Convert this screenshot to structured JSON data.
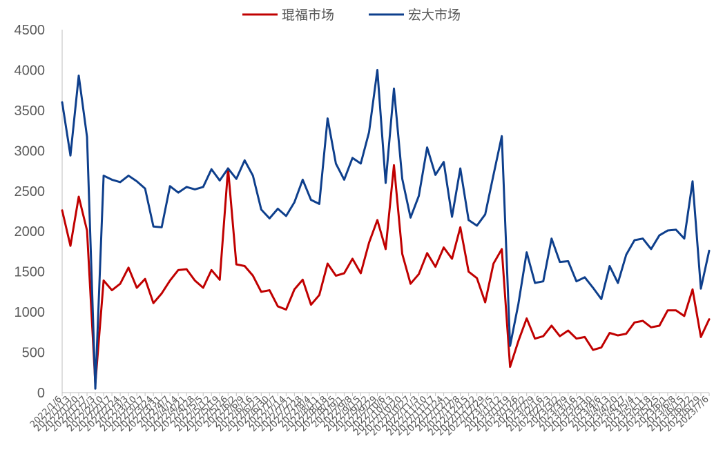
{
  "chart_data": {
    "type": "line",
    "title": "",
    "xlabel": "",
    "ylabel": "",
    "ylim": [
      0,
      4500
    ],
    "yticks": [
      0,
      500,
      1000,
      1500,
      2000,
      2500,
      3000,
      3500,
      4000,
      4500
    ],
    "legend_position": "top-center",
    "grid": false,
    "x": [
      "2022/1/6",
      "2022/1/13",
      "2022/1/20",
      "2022/1/27",
      "2022/2/3",
      "2022/2/10",
      "2022/2/17",
      "2022/2/24",
      "2022/3/3",
      "2022/3/10",
      "2022/3/17",
      "2022/3/24",
      "2022/3/31",
      "2022/4/7",
      "2022/4/14",
      "2022/4/21",
      "2022/4/28",
      "2022/5/5",
      "2022/5/12",
      "2022/5/19",
      "2022/5/26",
      "2022/6/2",
      "2022/6/9",
      "2022/6/16",
      "2022/6/23",
      "2022/6/30",
      "2022/7/7",
      "2022/7/14",
      "2022/7/21",
      "2022/7/28",
      "2022/8/4",
      "2022/8/11",
      "2022/8/18",
      "2022/8/25",
      "2022/9/1",
      "2022/9/8",
      "2022/9/15",
      "2022/9/22",
      "2022/9/29",
      "2022/10/6",
      "2022/10/13",
      "2022/10/20",
      "2022/10/27",
      "2022/11/3",
      "2022/11/10",
      "2022/11/17",
      "2022/11/24",
      "2022/12/1",
      "2022/12/8",
      "2022/12/15",
      "2022/12/22",
      "2022/12/29",
      "2023/1/5",
      "2023/1/12",
      "2023/1/19",
      "2023/1/26",
      "2023/2/2",
      "2023/2/9",
      "2023/2/16",
      "2023/2/23",
      "2023/3/2",
      "2023/3/9",
      "2023/3/16",
      "2023/3/23",
      "2023/3/30",
      "2023/4/6",
      "2023/4/13",
      "2023/4/20",
      "2023/4/27",
      "2023/5/4",
      "2023/5/11",
      "2023/5/18",
      "2023/5/25",
      "2023/6/1",
      "2023/6/8",
      "2023/6/15",
      "2023/6/22",
      "2023/6/29",
      "2023/7/6"
    ],
    "series": [
      {
        "name": "琨福市场",
        "color": "#c00000",
        "values": [
          2260,
          1820,
          2430,
          2010,
          110,
          1390,
          1270,
          1350,
          1550,
          1300,
          1410,
          1110,
          1230,
          1390,
          1520,
          1530,
          1390,
          1300,
          1520,
          1400,
          2780,
          1590,
          1570,
          1450,
          1250,
          1270,
          1070,
          1030,
          1280,
          1400,
          1090,
          1210,
          1600,
          1450,
          1480,
          1660,
          1480,
          1860,
          2140,
          1780,
          2820,
          1720,
          1350,
          1470,
          1730,
          1560,
          1800,
          1660,
          2050,
          1500,
          1420,
          1120,
          1600,
          1780,
          320,
          640,
          920,
          670,
          700,
          830,
          700,
          770,
          670,
          690,
          530,
          560,
          740,
          710,
          730,
          870,
          890,
          810,
          830,
          1020,
          1020,
          950,
          1280,
          690,
          910
        ]
      },
      {
        "name": "宏大市场",
        "color": "#0e3f8c",
        "values": [
          3600,
          2940,
          3930,
          3170,
          50,
          2690,
          2640,
          2610,
          2690,
          2620,
          2530,
          2060,
          2050,
          2560,
          2480,
          2550,
          2520,
          2550,
          2770,
          2630,
          2780,
          2650,
          2880,
          2690,
          2270,
          2160,
          2280,
          2190,
          2360,
          2640,
          2390,
          2340,
          3400,
          2840,
          2640,
          2910,
          2840,
          3230,
          4000,
          2600,
          3770,
          2650,
          2170,
          2440,
          3040,
          2700,
          2860,
          2180,
          2780,
          2140,
          2070,
          2210,
          2700,
          3180,
          580,
          1100,
          1740,
          1360,
          1380,
          1910,
          1620,
          1630,
          1380,
          1430,
          1300,
          1160,
          1570,
          1360,
          1710,
          1890,
          1910,
          1780,
          1950,
          2010,
          2020,
          1910,
          2620,
          1290,
          1760
        ]
      }
    ]
  }
}
